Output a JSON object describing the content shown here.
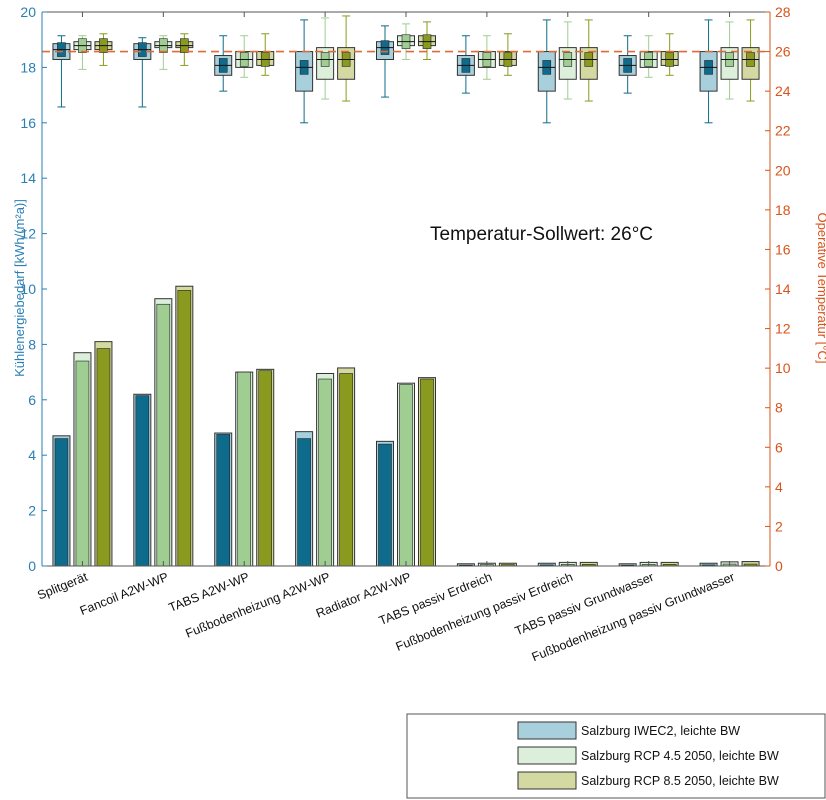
{
  "chart_data": {
    "type": "bar",
    "ylabel_left": "Kühlenergiebedarf [kWh/(m²a)]",
    "ylabel_right": "Operative Temperatur [°C]",
    "ylim_left": [
      0,
      20
    ],
    "ylim_right": [
      0,
      28
    ],
    "yticks_left": [
      "0",
      "2",
      "4",
      "6",
      "8",
      "10",
      "12",
      "14",
      "16",
      "18",
      "20"
    ],
    "yticks_right": [
      "0",
      "2",
      "4",
      "6",
      "8",
      "10",
      "12",
      "14",
      "16",
      "18",
      "20",
      "22",
      "24",
      "26",
      "28"
    ],
    "annotation": "Temperatur-Sollwert: 26°C",
    "setpoint": 26,
    "categories": [
      "Splitgerät",
      "Fancoil A2W-WP",
      "TABS A2W-WP",
      "Fußbodenheizung A2W-WP",
      "Radiator A2W-WP",
      "TABS passiv Erdreich",
      "Fußbodenheizung passiv Erdreich",
      "TABS passiv Grundwasser",
      "Fußbodenheizung passiv Grundwasser"
    ],
    "series": [
      {
        "name": "Salzburg IWEC2, leichte BW",
        "color_light": "#a8d0dc",
        "color_dark": "#0f6b8c",
        "values_total": [
          4.7,
          6.2,
          4.8,
          4.85,
          4.5,
          0.08,
          0.1,
          0.08,
          0.1
        ],
        "values_part": [
          4.6,
          6.15,
          4.75,
          4.6,
          4.4,
          0.03,
          0.04,
          0.03,
          0.04
        ],
        "temperature_box": [
          {
            "min": 23.2,
            "q1": 25.6,
            "median": 26.1,
            "q3": 26.4,
            "max": 26.8
          },
          {
            "min": 23.2,
            "q1": 25.6,
            "median": 26.1,
            "q3": 26.4,
            "max": 26.7
          },
          {
            "min": 24.0,
            "q1": 24.8,
            "median": 25.3,
            "q3": 25.8,
            "max": 26.8
          },
          {
            "min": 22.4,
            "q1": 24.0,
            "median": 25.2,
            "q3": 26.0,
            "max": 27.6
          },
          {
            "min": 23.7,
            "q1": 25.6,
            "median": 26.2,
            "q3": 26.5,
            "max": 27.3
          },
          {
            "min": 23.9,
            "q1": 24.8,
            "median": 25.3,
            "q3": 25.8,
            "max": 26.8
          },
          {
            "min": 22.4,
            "q1": 24.0,
            "median": 25.2,
            "q3": 26.0,
            "max": 27.6
          },
          {
            "min": 23.9,
            "q1": 24.8,
            "median": 25.3,
            "q3": 25.8,
            "max": 26.8
          },
          {
            "min": 22.4,
            "q1": 24.0,
            "median": 25.2,
            "q3": 26.0,
            "max": 27.6
          }
        ]
      },
      {
        "name": "Salzburg RCP 4.5 2050, leichte BW",
        "color_light": "#dcefdb",
        "color_dark": "#9fcd92",
        "values_total": [
          7.7,
          9.65,
          7.0,
          6.95,
          6.6,
          0.1,
          0.13,
          0.13,
          0.15
        ],
        "values_part": [
          7.4,
          9.45,
          7.0,
          6.75,
          6.55,
          0.05,
          0.06,
          0.06,
          0.07
        ],
        "temperature_box": [
          {
            "min": 25.1,
            "q1": 26.1,
            "median": 26.3,
            "q3": 26.5,
            "max": 26.8
          },
          {
            "min": 25.1,
            "q1": 26.2,
            "median": 26.3,
            "q3": 26.5,
            "max": 26.8
          },
          {
            "min": 24.7,
            "q1": 25.2,
            "median": 25.6,
            "q3": 26.0,
            "max": 26.8
          },
          {
            "min": 23.6,
            "q1": 24.6,
            "median": 25.6,
            "q3": 26.2,
            "max": 27.7
          },
          {
            "min": 25.6,
            "q1": 26.3,
            "median": 26.5,
            "q3": 26.8,
            "max": 27.4
          },
          {
            "min": 24.6,
            "q1": 25.2,
            "median": 25.6,
            "q3": 26.0,
            "max": 26.8
          },
          {
            "min": 23.6,
            "q1": 24.6,
            "median": 25.6,
            "q3": 26.2,
            "max": 27.5
          },
          {
            "min": 24.7,
            "q1": 25.2,
            "median": 25.6,
            "q3": 26.0,
            "max": 26.8
          },
          {
            "min": 23.6,
            "q1": 24.6,
            "median": 25.6,
            "q3": 26.2,
            "max": 27.5
          }
        ]
      },
      {
        "name": "Salzburg RCP 8.5 2050, leichte BW",
        "color_light": "#d4d9a1",
        "color_dark": "#8a9a1e",
        "values_total": [
          8.1,
          10.1,
          7.1,
          7.15,
          6.8,
          0.1,
          0.13,
          0.13,
          0.16
        ],
        "values_part": [
          7.85,
          9.95,
          7.05,
          6.95,
          6.75,
          0.05,
          0.06,
          0.06,
          0.07
        ],
        "temperature_box": [
          {
            "min": 25.3,
            "q1": 26.1,
            "median": 26.3,
            "q3": 26.5,
            "max": 26.9
          },
          {
            "min": 25.3,
            "q1": 26.2,
            "median": 26.3,
            "q3": 26.5,
            "max": 26.9
          },
          {
            "min": 24.8,
            "q1": 25.3,
            "median": 25.6,
            "q3": 26.0,
            "max": 26.9
          },
          {
            "min": 23.5,
            "q1": 24.6,
            "median": 25.6,
            "q3": 26.2,
            "max": 27.8
          },
          {
            "min": 25.6,
            "q1": 26.3,
            "median": 26.5,
            "q3": 26.8,
            "max": 27.5
          },
          {
            "min": 24.8,
            "q1": 25.3,
            "median": 25.6,
            "q3": 26.0,
            "max": 26.9
          },
          {
            "min": 23.5,
            "q1": 24.6,
            "median": 25.6,
            "q3": 26.2,
            "max": 27.6
          },
          {
            "min": 24.8,
            "q1": 25.3,
            "median": 25.6,
            "q3": 26.0,
            "max": 26.9
          },
          {
            "min": 23.5,
            "q1": 24.6,
            "median": 25.6,
            "q3": 26.2,
            "max": 27.6
          }
        ]
      }
    ],
    "colors": {
      "left_axis": "#2a7fb5",
      "right_axis": "#d9541b",
      "setpoint_line": "#e06a3a"
    }
  }
}
